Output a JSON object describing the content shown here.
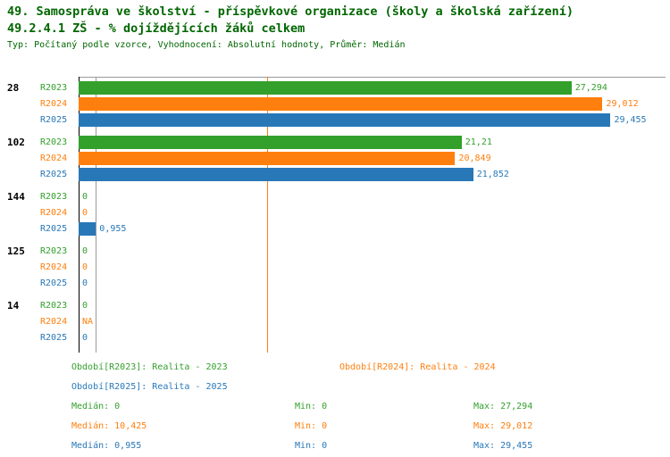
{
  "header": {
    "title": "49. Samospráva ve školství - příspěvkové organizace (školy a školská zařízení)",
    "subtitle": "49.2.4.1 ZŠ - % dojíždějících žáků celkem",
    "meta": "Typ: Počítaný podle vzorce, Vyhodnocení: Absolutní hodnoty, Průměr: Medián"
  },
  "colors": {
    "green": "#33a02c",
    "orange": "#ff7f0e",
    "blue": "#2878b8",
    "title_green": "#006600",
    "axis": "#000000",
    "grid": "#999999"
  },
  "chart_data": {
    "type": "bar",
    "orientation": "horizontal",
    "unit": "%",
    "axis_max": 32.5,
    "series": [
      {
        "label": "R2023",
        "name": "Realita - 2023",
        "color_key": "green"
      },
      {
        "label": "R2024",
        "name": "Realita - 2024",
        "color_key": "orange"
      },
      {
        "label": "R2025",
        "name": "Realita - 2025",
        "color_key": "blue"
      }
    ],
    "groups": [
      {
        "label": "28",
        "values": [
          27.294,
          29.012,
          29.455
        ],
        "value_labels": [
          "27,294",
          "29,012",
          "29,455"
        ]
      },
      {
        "label": "102",
        "values": [
          21.21,
          20.849,
          21.852
        ],
        "value_labels": [
          "21,21",
          "20,849",
          "21,852"
        ]
      },
      {
        "label": "144",
        "values": [
          0,
          0,
          0.955
        ],
        "value_labels": [
          "0",
          "0",
          "0,955"
        ]
      },
      {
        "label": "125",
        "values": [
          0,
          0,
          0
        ],
        "value_labels": [
          "0",
          "0",
          "0"
        ]
      },
      {
        "label": "14",
        "values": [
          0,
          null,
          0
        ],
        "value_labels": [
          "0",
          "NA",
          "0"
        ]
      }
    ],
    "median_lines": [
      {
        "value": 10.425,
        "color_key": "orange"
      },
      {
        "value": 0.955,
        "color_key": "grid"
      }
    ],
    "stats": {
      "R2023": {
        "median": 0,
        "min": 0,
        "max": 27.294
      },
      "R2024": {
        "median": 10.425,
        "min": 0,
        "max": 29.012
      },
      "R2025": {
        "median": 0.955,
        "min": 0,
        "max": 29.455
      }
    }
  },
  "legend": {
    "items": [
      {
        "label": "Období[R2023]: Realita - 2023",
        "color_key": "green"
      },
      {
        "label": "Období[R2024]: Realita - 2024",
        "color_key": "orange"
      },
      {
        "label": "Období[R2025]: Realita - 2025",
        "color_key": "blue"
      }
    ]
  },
  "stats": {
    "rows": [
      {
        "median": "Medián: 0",
        "min": "Min: 0",
        "max": "Max: 27,294",
        "color_key": "green"
      },
      {
        "median": "Medián: 10,425",
        "min": "Min: 0",
        "max": "Max: 29,012",
        "color_key": "orange"
      },
      {
        "median": "Medián: 0,955",
        "min": "Min: 0",
        "max": "Max: 29,455",
        "color_key": "blue"
      }
    ]
  }
}
